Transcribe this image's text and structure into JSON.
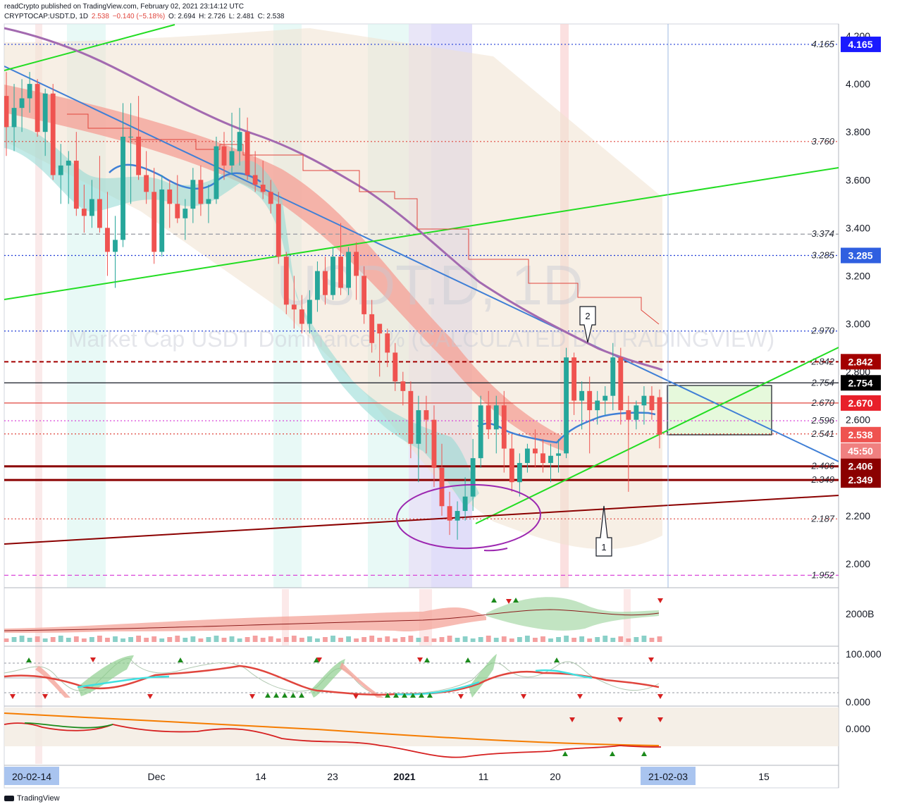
{
  "header": {
    "publisher": "readCrypto published on TradingView.com, February 02, 2021 23:14:12 UTC",
    "symbol": "CRYPTOCAP:USDT.D, 1D",
    "last": "2.538",
    "change": "−0.140 (−5.18%)",
    "o": "O: 2.694",
    "h": "H: 2.726",
    "l": "L: 2.481",
    "c": "C: 2.538"
  },
  "watermark": {
    "symbol": "USDT.D, 1D",
    "description": "Market Cap USDT Dominance, % (CALCULATED BY TRADINGVIEW)"
  },
  "footer": {
    "brand": "TradingView"
  },
  "colors": {
    "up": "#26a69a",
    "down": "#ef5350",
    "trend_blue": "#3f7fd6",
    "trend_green": "#22dd22",
    "ma_purple": "#a36ab0",
    "support_dark": "#8b0000",
    "box_fill": "#e6f9dc"
  },
  "chart_data": {
    "type": "candlestick",
    "ylim": [
      1.9,
      4.25
    ],
    "yticks": [
      "2.000",
      "2.200",
      "2.400",
      "2.600",
      "2.800",
      "3.000",
      "3.200",
      "3.400",
      "3.600",
      "3.800",
      "4.000",
      "4.200"
    ],
    "xticks": [
      "Dec",
      "14",
      "23",
      "2021",
      "11",
      "20",
      "15"
    ],
    "x_highlight_labels": [
      "20-02-14",
      "21-02-03"
    ],
    "candles": [
      [
        3.95,
        4.05,
        3.7,
        3.82
      ],
      [
        3.82,
        4.0,
        3.72,
        3.9
      ],
      [
        3.9,
        4.02,
        3.8,
        3.94
      ],
      [
        3.94,
        4.05,
        3.88,
        4.0
      ],
      [
        4.0,
        4.02,
        3.78,
        3.8
      ],
      [
        3.8,
        3.98,
        3.7,
        3.96
      ],
      [
        3.96,
        4.0,
        3.6,
        3.62
      ],
      [
        3.62,
        3.75,
        3.5,
        3.66
      ],
      [
        3.66,
        3.72,
        3.5,
        3.68
      ],
      [
        3.68,
        3.8,
        3.45,
        3.48
      ],
      [
        3.48,
        3.58,
        3.38,
        3.45
      ],
      [
        3.45,
        3.6,
        3.4,
        3.52
      ],
      [
        3.52,
        3.7,
        3.38,
        3.4
      ],
      [
        3.4,
        3.55,
        3.2,
        3.3
      ],
      [
        3.3,
        3.45,
        3.15,
        3.35
      ],
      [
        3.35,
        3.92,
        3.32,
        3.78
      ],
      [
        3.78,
        3.92,
        3.5,
        3.78
      ],
      [
        3.78,
        3.95,
        3.6,
        3.62
      ],
      [
        3.62,
        3.72,
        3.5,
        3.55
      ],
      [
        3.55,
        3.65,
        3.25,
        3.3
      ],
      [
        3.3,
        3.62,
        3.28,
        3.56
      ],
      [
        3.56,
        3.6,
        3.4,
        3.5
      ],
      [
        3.5,
        3.62,
        3.42,
        3.44
      ],
      [
        3.44,
        3.52,
        3.35,
        3.48
      ],
      [
        3.48,
        3.65,
        3.42,
        3.6
      ],
      [
        3.6,
        3.66,
        3.45,
        3.5
      ],
      [
        3.5,
        3.58,
        3.42,
        3.52
      ],
      [
        3.52,
        3.78,
        3.5,
        3.74
      ],
      [
        3.74,
        3.8,
        3.6,
        3.66
      ],
      [
        3.66,
        3.88,
        3.62,
        3.72
      ],
      [
        3.72,
        3.9,
        3.66,
        3.8
      ],
      [
        3.8,
        3.86,
        3.6,
        3.62
      ],
      [
        3.62,
        3.72,
        3.55,
        3.58
      ],
      [
        3.58,
        3.68,
        3.52,
        3.55
      ],
      [
        3.55,
        3.6,
        3.46,
        3.5
      ],
      [
        3.5,
        3.55,
        3.25,
        3.28
      ],
      [
        3.28,
        3.3,
        3.04,
        3.08
      ],
      [
        3.08,
        3.2,
        2.98,
        3.06
      ],
      [
        3.06,
        3.12,
        2.96,
        3.0
      ],
      [
        3.0,
        3.14,
        2.96,
        3.1
      ],
      [
        3.1,
        3.26,
        3.05,
        3.22
      ],
      [
        3.22,
        3.28,
        3.08,
        3.12
      ],
      [
        3.12,
        3.32,
        3.1,
        3.28
      ],
      [
        3.28,
        3.42,
        3.12,
        3.15
      ],
      [
        3.15,
        3.32,
        3.12,
        3.3
      ],
      [
        3.3,
        3.34,
        3.1,
        3.2
      ],
      [
        3.2,
        3.24,
        3.0,
        3.04
      ],
      [
        3.04,
        3.1,
        2.88,
        2.92
      ],
      [
        3.0,
        3.0,
        2.78,
        2.96
      ],
      [
        2.96,
        2.98,
        2.82,
        2.88
      ],
      [
        2.88,
        2.92,
        2.72,
        2.76
      ],
      [
        2.76,
        2.8,
        2.66,
        2.72
      ],
      [
        2.72,
        2.76,
        2.44,
        2.5
      ],
      [
        2.5,
        2.7,
        2.34,
        2.64
      ],
      [
        2.64,
        2.7,
        2.46,
        2.6
      ],
      [
        2.6,
        2.66,
        2.32,
        2.4
      ],
      [
        2.4,
        2.5,
        2.2,
        2.24
      ],
      [
        2.24,
        2.3,
        2.12,
        2.18
      ],
      [
        2.18,
        2.26,
        2.1,
        2.22
      ],
      [
        2.22,
        2.36,
        2.18,
        2.28
      ],
      [
        2.28,
        2.52,
        2.22,
        2.44
      ],
      [
        2.44,
        2.7,
        2.4,
        2.66
      ],
      [
        2.66,
        2.72,
        2.52,
        2.56
      ],
      [
        2.56,
        2.7,
        2.46,
        2.66
      ],
      [
        2.66,
        2.72,
        2.38,
        2.48
      ],
      [
        2.48,
        2.54,
        2.3,
        2.34
      ],
      [
        2.34,
        2.46,
        2.28,
        2.42
      ],
      [
        2.42,
        2.5,
        2.38,
        2.48
      ],
      [
        2.48,
        2.56,
        2.4,
        2.46
      ],
      [
        2.46,
        2.52,
        2.38,
        2.42
      ],
      [
        2.42,
        2.5,
        2.34,
        2.45
      ],
      [
        2.45,
        2.52,
        2.38,
        2.46
      ],
      [
        2.46,
        2.9,
        2.44,
        2.86
      ],
      [
        2.86,
        2.88,
        2.62,
        2.68
      ],
      [
        2.68,
        2.76,
        2.56,
        2.72
      ],
      [
        2.72,
        2.78,
        2.46,
        2.64
      ],
      [
        2.64,
        2.72,
        2.58,
        2.68
      ],
      [
        2.68,
        2.74,
        2.62,
        2.7
      ],
      [
        2.7,
        2.92,
        2.64,
        2.86
      ],
      [
        2.86,
        2.9,
        2.58,
        2.64
      ],
      [
        2.64,
        2.7,
        2.3,
        2.6
      ],
      [
        2.6,
        2.68,
        2.56,
        2.66
      ],
      [
        2.66,
        2.74,
        2.58,
        2.7
      ],
      [
        2.7,
        2.74,
        2.6,
        2.64
      ],
      [
        2.694,
        2.726,
        2.481,
        2.538
      ]
    ],
    "horizontal_levels": [
      {
        "value": 4.165,
        "label": "4.165",
        "style": "dotted",
        "color": "#1f3bd6"
      },
      {
        "value": 3.76,
        "label": "3.760",
        "style": "dotted",
        "color": "#e0453d"
      },
      {
        "value": 3.374,
        "label": "3.374",
        "style": "dashed",
        "color": "#9598a1"
      },
      {
        "value": 3.285,
        "label": "3.285",
        "style": "dotted",
        "color": "#1f3bd6"
      },
      {
        "value": 2.97,
        "label": "2.970",
        "style": "dotted",
        "color": "#1f3bd6"
      },
      {
        "value": 2.842,
        "label": "2.842",
        "style": "dashed",
        "color": "#a30000"
      },
      {
        "value": 2.754,
        "label": "2.754",
        "style": "solid",
        "color": "#131722"
      },
      {
        "value": 2.67,
        "label": "2.670",
        "style": "solid",
        "color": "#e0453d"
      },
      {
        "value": 2.596,
        "label": "2.596",
        "style": "dotted",
        "color": "#d633d6"
      },
      {
        "value": 2.541,
        "label": "2.541",
        "style": "dotted",
        "color": "#e0453d"
      },
      {
        "value": 2.406,
        "label": "2.406",
        "style": "solid",
        "color": "#8b0000"
      },
      {
        "value": 2.349,
        "label": "2.349",
        "style": "solid",
        "color": "#8b0000"
      },
      {
        "value": 2.187,
        "label": "2.187",
        "style": "dotted",
        "color": "#e0453d"
      },
      {
        "value": 1.952,
        "label": "1.952",
        "style": "dashed",
        "color": "#d633d6"
      }
    ],
    "axis_tags": [
      {
        "value": 4.165,
        "text": "4.165",
        "color": "#1a1aff"
      },
      {
        "value": 3.285,
        "text": "3.285",
        "color": "#2f5fe0"
      },
      {
        "value": 2.842,
        "text": "2.842",
        "color": "#a30000"
      },
      {
        "value": 2.754,
        "text": "2.754",
        "color": "#000000"
      },
      {
        "value": 2.67,
        "text": "2.670",
        "color": "#e8202a"
      },
      {
        "value": 2.538,
        "text": "2.538",
        "color": "#ef5350"
      },
      {
        "value": 2.47,
        "text": "45:50",
        "color": "#f08080"
      },
      {
        "value": 2.406,
        "text": "2.406",
        "color": "#8b0000"
      },
      {
        "value": 2.349,
        "text": "2.349",
        "color": "#8b0000"
      }
    ],
    "annotations": [
      "1",
      "2"
    ],
    "sub_axes": {
      "volume": "2000B",
      "oscillator_top": "100.000",
      "oscillator_bottom": "0.000",
      "bottom_panel": "0.000"
    }
  }
}
